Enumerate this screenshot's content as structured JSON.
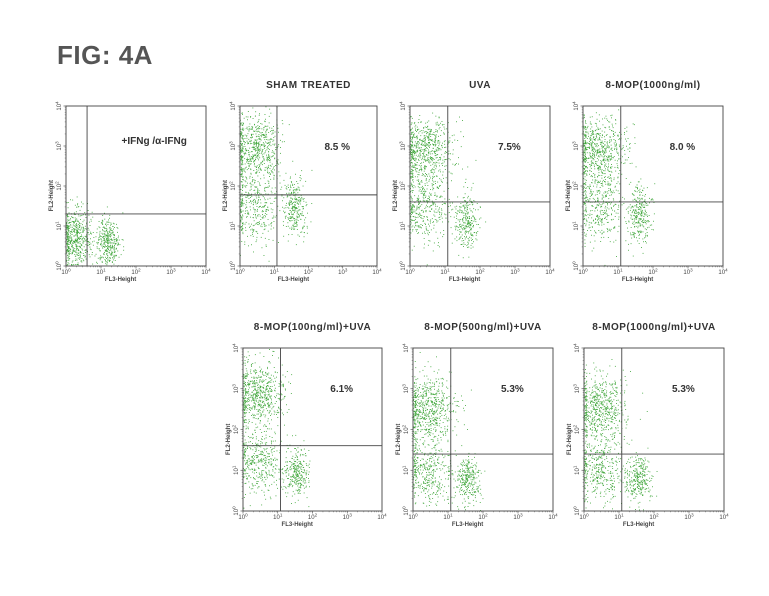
{
  "figure": {
    "title": "FIG: 4A",
    "dot_color": "#3fa63a",
    "axis_color": "#444444"
  },
  "chart_data": [
    {
      "type": "scatter",
      "title": "",
      "annotation": "+IFNg /α-IFNg",
      "xlabel": "FL3-Height",
      "ylabel": "FL2-Height",
      "x_scale": "log",
      "y_scale": "log",
      "xlim": [
        1,
        10000
      ],
      "ylim": [
        1,
        10000
      ],
      "x_tick_labels": [
        "10^0",
        "10^1",
        "10^2",
        "10^3",
        "10^4"
      ],
      "y_tick_labels": [
        "10^0",
        "10^1",
        "10^2",
        "10^3",
        "10^4"
      ],
      "quadrant_gate": {
        "x": 4,
        "y": 20
      },
      "clusters": [
        {
          "label": "population A",
          "center_log": [
            0.25,
            0.7
          ],
          "spread_log": [
            0.25,
            0.35
          ],
          "points": 520
        },
        {
          "label": "population B",
          "center_log": [
            1.2,
            0.6
          ],
          "spread_log": [
            0.17,
            0.3
          ],
          "points": 340
        }
      ]
    },
    {
      "type": "scatter",
      "title": "SHAM TREATED",
      "annotation": "8.5 %",
      "xlabel": "FL3-Height",
      "ylabel": "FL2-Height",
      "x_scale": "log",
      "y_scale": "log",
      "xlim": [
        1,
        10000
      ],
      "ylim": [
        1,
        10000
      ],
      "x_tick_labels": [
        "10^0",
        "10^1",
        "10^2",
        "10^3",
        "10^4"
      ],
      "y_tick_labels": [
        "10^0",
        "10^1",
        "10^2",
        "10^3",
        "10^4"
      ],
      "quadrant_gate": {
        "x": 12,
        "y": 60
      },
      "clusters": [
        {
          "label": "upper-left",
          "center_log": [
            0.45,
            2.95
          ],
          "spread_log": [
            0.38,
            0.45
          ],
          "points": 620
        },
        {
          "label": "lower-left",
          "center_log": [
            0.45,
            1.5
          ],
          "spread_log": [
            0.38,
            0.5
          ],
          "points": 380
        },
        {
          "label": "lower-right",
          "center_log": [
            1.6,
            1.45
          ],
          "spread_log": [
            0.17,
            0.38
          ],
          "points": 280
        }
      ]
    },
    {
      "type": "scatter",
      "title": "UVA",
      "annotation": "7.5%",
      "xlabel": "FL3-Height",
      "ylabel": "FL2-Height",
      "x_scale": "log",
      "y_scale": "log",
      "xlim": [
        1,
        10000
      ],
      "ylim": [
        1,
        10000
      ],
      "x_tick_labels": [
        "10^0",
        "10^1",
        "10^2",
        "10^3",
        "10^4"
      ],
      "y_tick_labels": [
        "10^0",
        "10^1",
        "10^2",
        "10^3",
        "10^4"
      ],
      "quadrant_gate": {
        "x": 12,
        "y": 40
      },
      "clusters": [
        {
          "label": "upper-left",
          "center_log": [
            0.45,
            2.9
          ],
          "spread_log": [
            0.38,
            0.4
          ],
          "points": 620
        },
        {
          "label": "lower-left",
          "center_log": [
            0.45,
            1.5
          ],
          "spread_log": [
            0.38,
            0.45
          ],
          "points": 380
        },
        {
          "label": "lower-right",
          "center_log": [
            1.6,
            1.15
          ],
          "spread_log": [
            0.17,
            0.35
          ],
          "points": 280
        }
      ]
    },
    {
      "type": "scatter",
      "title": "8-MOP(1000ng/ml)",
      "annotation": "8.0 %",
      "xlabel": "FL3-Height",
      "ylabel": "FL2-Height",
      "x_scale": "log",
      "y_scale": "log",
      "xlim": [
        1,
        10000
      ],
      "ylim": [
        1,
        10000
      ],
      "x_tick_labels": [
        "10^0",
        "10^1",
        "10^2",
        "10^3",
        "10^4"
      ],
      "y_tick_labels": [
        "10^0",
        "10^1",
        "10^2",
        "10^3",
        "10^4"
      ],
      "quadrant_gate": {
        "x": 12,
        "y": 40
      },
      "clusters": [
        {
          "label": "upper-left",
          "center_log": [
            0.45,
            2.9
          ],
          "spread_log": [
            0.38,
            0.4
          ],
          "points": 620
        },
        {
          "label": "lower-left",
          "center_log": [
            0.45,
            1.5
          ],
          "spread_log": [
            0.38,
            0.45
          ],
          "points": 380
        },
        {
          "label": "lower-right",
          "center_log": [
            1.6,
            1.3
          ],
          "spread_log": [
            0.17,
            0.38
          ],
          "points": 280
        }
      ]
    },
    {
      "type": "scatter",
      "title": "8-MOP(100ng/ml)+UVA",
      "annotation": "6.1%",
      "xlabel": "FL3-Height",
      "ylabel": "FL2-Height",
      "x_scale": "log",
      "y_scale": "log",
      "xlim": [
        1,
        10000
      ],
      "ylim": [
        1,
        10000
      ],
      "x_tick_labels": [
        "10^0",
        "10^1",
        "10^2",
        "10^3",
        "10^4"
      ],
      "y_tick_labels": [
        "10^0",
        "10^1",
        "10^2",
        "10^3",
        "10^4"
      ],
      "quadrant_gate": {
        "x": 12,
        "y": 40
      },
      "clusters": [
        {
          "label": "upper-left",
          "center_log": [
            0.45,
            2.85
          ],
          "spread_log": [
            0.38,
            0.42
          ],
          "points": 620
        },
        {
          "label": "lower-left",
          "center_log": [
            0.45,
            1.2
          ],
          "spread_log": [
            0.38,
            0.4
          ],
          "points": 380
        },
        {
          "label": "lower-right",
          "center_log": [
            1.55,
            0.95
          ],
          "spread_log": [
            0.17,
            0.32
          ],
          "points": 280
        }
      ]
    },
    {
      "type": "scatter",
      "title": "8-MOP(500ng/ml)+UVA",
      "annotation": "5.3%",
      "xlabel": "FL3-Height",
      "ylabel": "FL2-Height",
      "x_scale": "log",
      "y_scale": "log",
      "xlim": [
        1,
        10000
      ],
      "ylim": [
        1,
        10000
      ],
      "x_tick_labels": [
        "10^0",
        "10^1",
        "10^2",
        "10^3",
        "10^4"
      ],
      "y_tick_labels": [
        "10^0",
        "10^1",
        "10^2",
        "10^3",
        "10^4"
      ],
      "quadrant_gate": {
        "x": 12,
        "y": 25
      },
      "clusters": [
        {
          "label": "upper-left",
          "center_log": [
            0.45,
            2.5
          ],
          "spread_log": [
            0.38,
            0.42
          ],
          "points": 620
        },
        {
          "label": "lower-left",
          "center_log": [
            0.45,
            0.95
          ],
          "spread_log": [
            0.38,
            0.38
          ],
          "points": 380
        },
        {
          "label": "lower-right",
          "center_log": [
            1.55,
            0.75
          ],
          "spread_log": [
            0.17,
            0.3
          ],
          "points": 280
        }
      ]
    },
    {
      "type": "scatter",
      "title": "8-MOP(1000ng/ml)+UVA",
      "annotation": "5.3%",
      "xlabel": "FL3-Height",
      "ylabel": "FL2-Height",
      "x_scale": "log",
      "y_scale": "log",
      "xlim": [
        1,
        10000
      ],
      "ylim": [
        1,
        10000
      ],
      "x_tick_labels": [
        "10^0",
        "10^1",
        "10^2",
        "10^3",
        "10^4"
      ],
      "y_tick_labels": [
        "10^0",
        "10^1",
        "10^2",
        "10^3",
        "10^4"
      ],
      "quadrant_gate": {
        "x": 12,
        "y": 25
      },
      "clusters": [
        {
          "label": "upper-left",
          "center_log": [
            0.45,
            2.5
          ],
          "spread_log": [
            0.38,
            0.42
          ],
          "points": 620
        },
        {
          "label": "lower-left",
          "center_log": [
            0.45,
            1.0
          ],
          "spread_log": [
            0.38,
            0.38
          ],
          "points": 380
        },
        {
          "label": "lower-right",
          "center_log": [
            1.55,
            0.8
          ],
          "spread_log": [
            0.17,
            0.3
          ],
          "points": 280
        }
      ]
    }
  ]
}
